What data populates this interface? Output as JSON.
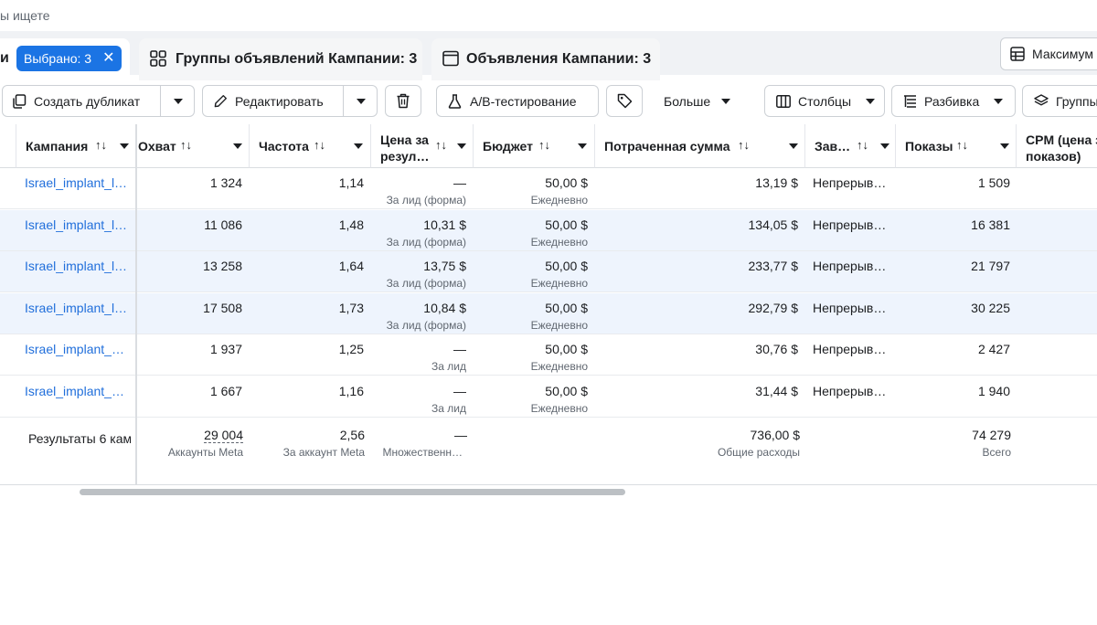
{
  "search": {
    "placeholder_tail": "ы ищете"
  },
  "tabs": {
    "campaigns_partial": "и",
    "selected_label": "Выбрано: 3",
    "groups_label": "Группы объявлений Кампании: 3",
    "ads_label": "Объявления Кампании: 3"
  },
  "max_button": {
    "label": "Максимум"
  },
  "toolbar": {
    "duplicate": "Создать дубликат",
    "edit": "Редактировать",
    "ab_test": "A/B-тестирование",
    "more": "Больше",
    "columns": "Столбцы",
    "breakdown": "Разбивка",
    "groups_partial": "Группы"
  },
  "columns": {
    "campaign": "Кампания",
    "reach": "Охват",
    "frequency": "Частота",
    "cost_line1": "Цена за",
    "cost_line2": "резул…",
    "budget": "Бюджет",
    "spent": "Потраченная сумма",
    "ends": "Зав…",
    "impressions": "Показы",
    "cpm_line1": "CPM (цена з",
    "cpm_line2": "показов)"
  },
  "rows": [
    {
      "campaign": "Israel_implant_l…",
      "reach": "1 324",
      "frequency": "1,14",
      "cost": "—",
      "cost_sub": "За лид (форма)",
      "budget": "50,00 $",
      "budget_sub": "Ежедневно",
      "spent": "13,19 $",
      "ends": "Непрерыв…",
      "impressions": "1 509",
      "selected": false
    },
    {
      "campaign": "Israel_implant_l…",
      "reach": "11 086",
      "frequency": "1,48",
      "cost": "10,31 $",
      "cost_sub": "За лид (форма)",
      "budget": "50,00 $",
      "budget_sub": "Ежедневно",
      "spent": "134,05 $",
      "ends": "Непрерыв…",
      "impressions": "16 381",
      "selected": true
    },
    {
      "campaign": "Israel_implant_l…",
      "reach": "13 258",
      "frequency": "1,64",
      "cost": "13,75 $",
      "cost_sub": "За лид (форма)",
      "budget": "50,00 $",
      "budget_sub": "Ежедневно",
      "spent": "233,77 $",
      "ends": "Непрерыв…",
      "impressions": "21 797",
      "selected": true
    },
    {
      "campaign": "Israel_implant_l…",
      "reach": "17 508",
      "frequency": "1,73",
      "cost": "10,84 $",
      "cost_sub": "За лид (форма)",
      "budget": "50,00 $",
      "budget_sub": "Ежедневно",
      "spent": "292,79 $",
      "ends": "Непрерыв…",
      "impressions": "30 225",
      "selected": true
    },
    {
      "campaign": "Israel_implant_…",
      "reach": "1 937",
      "frequency": "1,25",
      "cost": "—",
      "cost_sub": "За лид",
      "budget": "50,00 $",
      "budget_sub": "Ежедневно",
      "spent": "30,76 $",
      "ends": "Непрерыв…",
      "impressions": "2 427",
      "selected": false
    },
    {
      "campaign": "Israel_implant_…",
      "reach": "1 667",
      "frequency": "1,16",
      "cost": "—",
      "cost_sub": "За лид",
      "budget": "50,00 $",
      "budget_sub": "Ежедневно",
      "spent": "31,44 $",
      "ends": "Непрерыв…",
      "impressions": "1 940",
      "selected": false
    }
  ],
  "totals": {
    "label": "Результаты 6 кам",
    "reach": "29 004",
    "reach_sub": "Аккаунты Meta",
    "frequency": "2,56",
    "frequency_sub": "За аккаунт Meta",
    "cost": "—",
    "cost_sub": "Множественн…",
    "spent": "736,00 $",
    "spent_sub": "Общие расходы",
    "impressions": "74 279",
    "impressions_sub": "Всего"
  },
  "colors": {
    "accent": "#1b74e4",
    "link": "#216fdb",
    "selected_row": "#eef4fd"
  }
}
